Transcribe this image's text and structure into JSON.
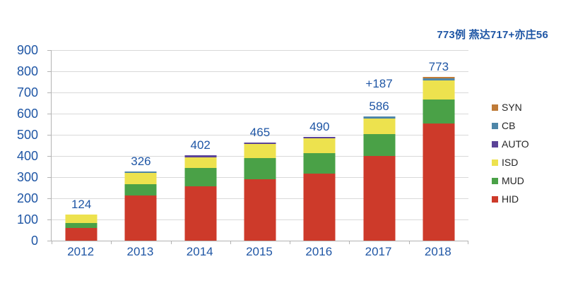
{
  "annotation": "773例 燕达717+亦庄56",
  "colors": {
    "label_blue": "#1F56A5",
    "legend_text": "#262626",
    "gridline": "#D9D9D9",
    "axis": "#B3B3B3",
    "background": "#FFFFFF"
  },
  "chart_data": {
    "type": "bar",
    "stacked": true,
    "title": "",
    "xlabel": "",
    "ylabel": "",
    "categories": [
      "2012",
      "2013",
      "2014",
      "2015",
      "2016",
      "2017",
      "2018"
    ],
    "series": [
      {
        "name": "HID",
        "color": "#CD3A2A",
        "values": [
          60,
          212,
          258,
          290,
          318,
          400,
          555
        ]
      },
      {
        "name": "MUD",
        "color": "#4AA147",
        "values": [
          22,
          55,
          87,
          100,
          94,
          103,
          112
        ]
      },
      {
        "name": "ISD",
        "color": "#EDE24E",
        "values": [
          42,
          54,
          50,
          68,
          70,
          73,
          90
        ]
      },
      {
        "name": "AUTO",
        "color": "#5B4397",
        "values": [
          0,
          0,
          7,
          7,
          8,
          0,
          0
        ]
      },
      {
        "name": "CB",
        "color": "#4E86A8",
        "values": [
          0,
          5,
          0,
          0,
          0,
          10,
          11
        ]
      },
      {
        "name": "SYN",
        "color": "#BF7B38",
        "values": [
          0,
          0,
          0,
          0,
          0,
          0,
          5
        ]
      }
    ],
    "totals": [
      124,
      326,
      402,
      465,
      490,
      586,
      773
    ],
    "bar_labels": [
      "124",
      "326",
      "402",
      "465",
      "490",
      "586",
      "773"
    ],
    "extra_bar_labels": [
      null,
      null,
      null,
      null,
      null,
      "+187",
      null
    ],
    "legend": [
      "SYN",
      "CB",
      "AUTO",
      "ISD",
      "MUD",
      "HID"
    ],
    "legend_position": "right",
    "grid": true,
    "y_axis": {
      "min": 0,
      "max": 900,
      "step": 100,
      "ticks": [
        "0",
        "100",
        "200",
        "300",
        "400",
        "500",
        "600",
        "700",
        "800",
        "900"
      ]
    }
  }
}
